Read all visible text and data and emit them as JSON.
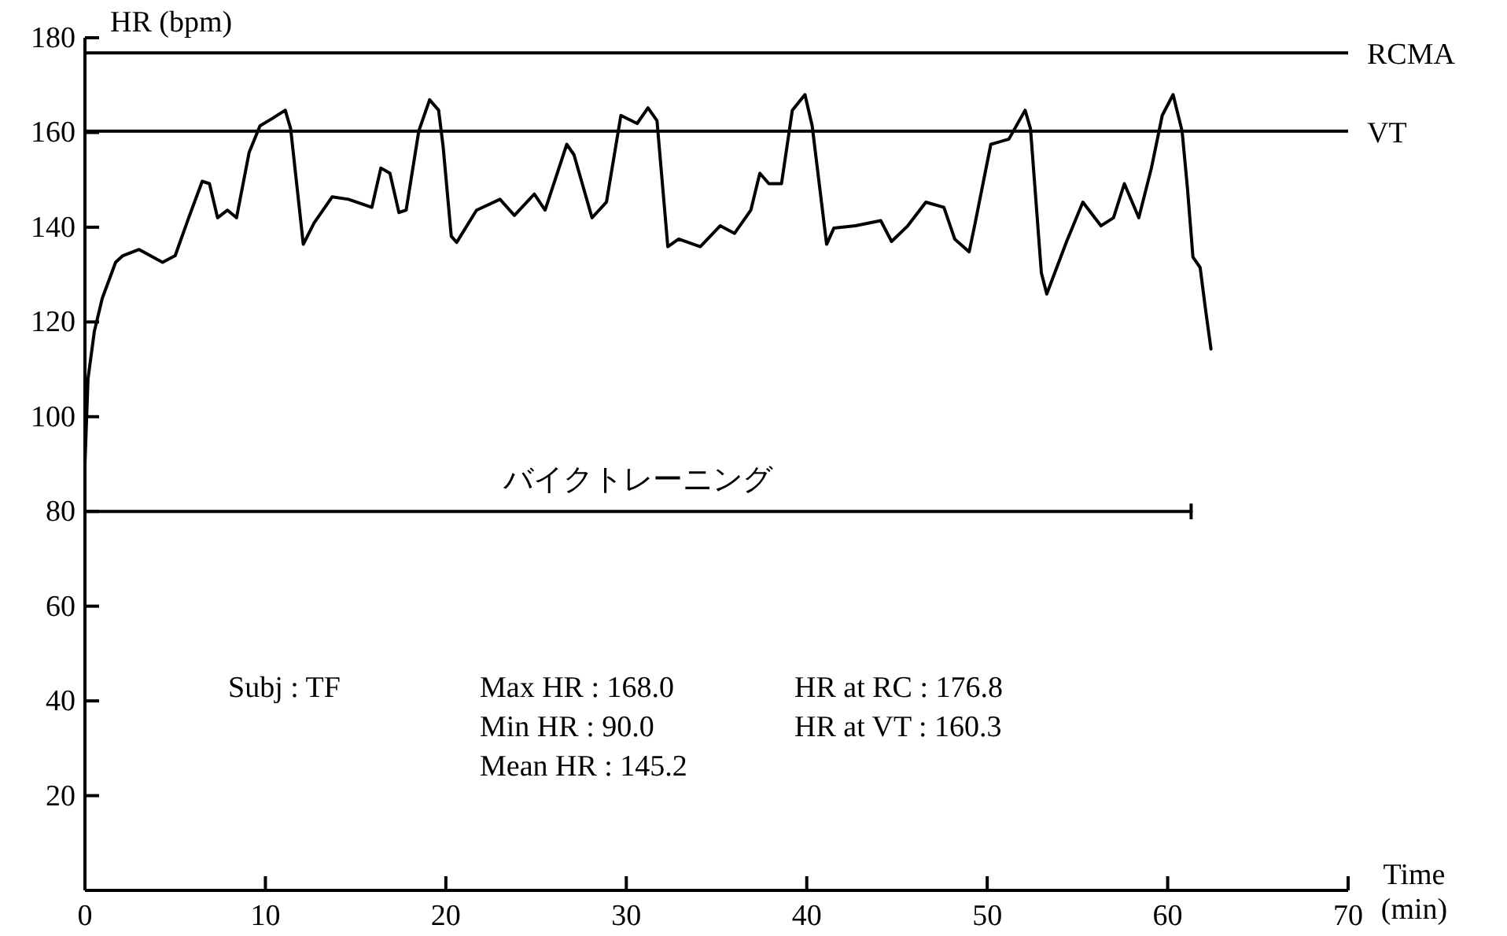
{
  "chart_data": {
    "type": "line",
    "ylabel": "HR (bpm)",
    "xlabel": "Time (min)",
    "xlim": [
      0,
      70
    ],
    "ylim": [
      0,
      180
    ],
    "xticks": [
      0,
      10,
      20,
      30,
      40,
      50,
      60,
      70
    ],
    "yticks": [
      20,
      40,
      60,
      80,
      100,
      120,
      140,
      160,
      180
    ],
    "series": [
      {
        "color": "#000000",
        "x": [
          0,
          0.17,
          0.52,
          0.96,
          1.7,
          2.1,
          3.0,
          4.3,
          5.0,
          5.75,
          6.5,
          6.9,
          7.35,
          7.9,
          8.4,
          9.1,
          9.7,
          10.4,
          11.1,
          11.4,
          12.1,
          12.7,
          13.7,
          14.6,
          15.9,
          16.4,
          16.9,
          17.4,
          17.8,
          18.5,
          19.1,
          19.6,
          19.85,
          20.3,
          20.6,
          21.7,
          23.0,
          23.8,
          24.9,
          25.5,
          26.7,
          27.1,
          28.1,
          28.9,
          29.7,
          30.6,
          31.2,
          31.7,
          32.3,
          32.9,
          34.1,
          35.2,
          36.0,
          36.9,
          37.4,
          37.9,
          38.6,
          39.2,
          39.9,
          40.3,
          41.1,
          41.5,
          42.7,
          44.1,
          44.7,
          45.6,
          46.6,
          47.6,
          48.2,
          49.0,
          49.3,
          50.2,
          51.2,
          52.1,
          52.4,
          53.0,
          53.3,
          54.4,
          55.3,
          56.3,
          57.0,
          57.6,
          58.4,
          59.1,
          59.7,
          60.3,
          60.8,
          61.1,
          61.4,
          61.8,
          62.1,
          62.4
        ],
        "values": [
          90,
          108,
          118,
          125,
          132.6,
          134,
          135.3,
          132.6,
          134,
          142,
          149.7,
          149.2,
          142,
          143.6,
          142,
          155.8,
          161.4,
          163,
          164.7,
          160.8,
          136.4,
          140.9,
          146.4,
          145.9,
          144.2,
          152.5,
          151.4,
          143.1,
          143.6,
          160.3,
          166.9,
          164.7,
          157,
          138.1,
          136.8,
          143.6,
          145.9,
          142.5,
          147,
          143.6,
          157.5,
          155.3,
          142,
          145.3,
          163.6,
          161.9,
          165.2,
          162.5,
          135.9,
          137.5,
          135.9,
          140.3,
          138.7,
          143.6,
          151.4,
          149.2,
          149.2,
          164.7,
          168,
          161.4,
          136.4,
          139.8,
          140.3,
          141.4,
          137,
          140.3,
          145.3,
          144.2,
          137.5,
          134.8,
          140.3,
          157.5,
          158.6,
          164.7,
          160.8,
          130.4,
          125.9,
          137,
          145.3,
          140.3,
          142,
          149.2,
          142,
          152.5,
          163.6,
          168,
          160.3,
          148.1,
          133.7,
          131.5,
          122.6,
          114.3
        ]
      },
      {
        "name": "バイクトレーニング",
        "color": "#000000",
        "x": [
          0,
          61.3
        ],
        "values": [
          80,
          80
        ]
      }
    ],
    "ref_lines": [
      {
        "axis": "y",
        "value": 176.8,
        "label": "RCMA"
      },
      {
        "axis": "y",
        "value": 160.3,
        "label": "VT"
      }
    ],
    "annotations": [
      "Subj : TF",
      "Max HR : 168.0",
      "Min HR : 90.0",
      "Mean HR : 145.2",
      "HR at RC : 176.8",
      "HR at VT : 160.3"
    ]
  }
}
